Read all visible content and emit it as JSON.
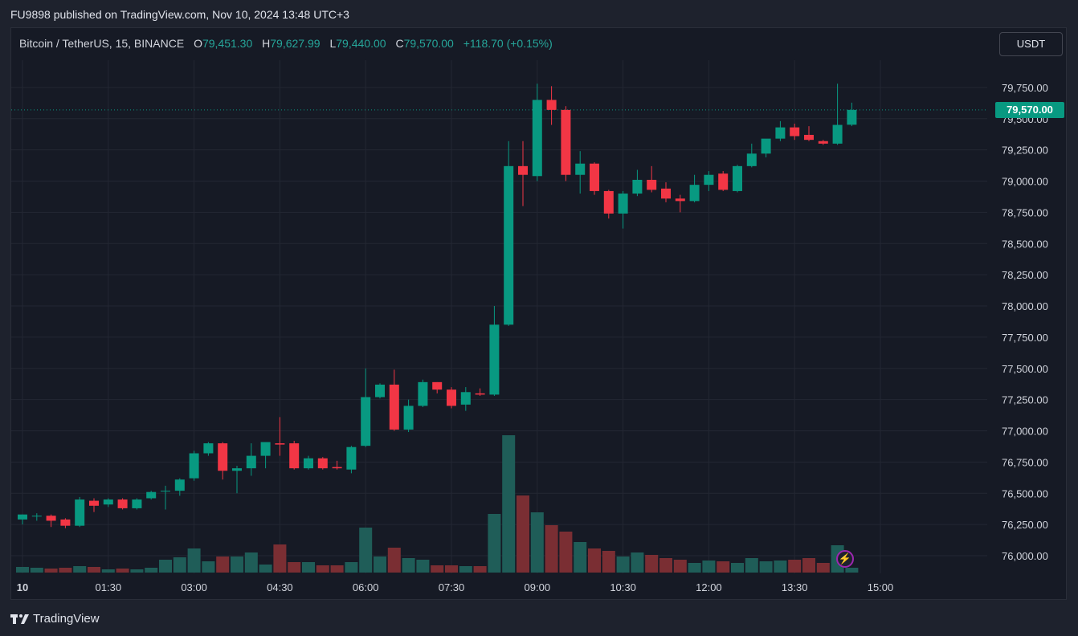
{
  "header": {
    "published": "FU9898 published on TradingView.com, Nov 10, 2024 13:48 UTC+3"
  },
  "symbol": {
    "name": "Bitcoin / TetherUS, 15, BINANCE",
    "o_label": "O",
    "o_value": "79,451.30",
    "h_label": "H",
    "h_value": "79,627.99",
    "l_label": "L",
    "l_value": "79,440.00",
    "c_label": "C",
    "c_value": "79,570.00",
    "change": "+118.70 (+0.15%)"
  },
  "currency_button": "USDT",
  "last_price_label": "79,570.00",
  "footer": {
    "brand": "TradingView",
    "logo_icon": "tradingview-logo-icon"
  },
  "colors": {
    "up": "#089981",
    "down": "#f23645",
    "up_volume": "#1f5d58",
    "down_volume": "#7a2e33",
    "background": "#161a25",
    "grid": "#232733",
    "text": "#d1d4dc"
  },
  "chart_data": {
    "type": "candlestick",
    "interval": "15",
    "grid": true,
    "price_axis": {
      "position": "right",
      "ticks": [
        76000,
        76250,
        76500,
        76750,
        77000,
        77250,
        77500,
        77750,
        78000,
        78250,
        78500,
        78750,
        79000,
        79250,
        79500,
        79750
      ],
      "tick_labels": [
        "76,000.00",
        "76,250.00",
        "76,500.00",
        "76,750.00",
        "77,000.00",
        "77,250.00",
        "77,500.00",
        "77,750.00",
        "78,000.00",
        "78,250.00",
        "78,500.00",
        "78,750.00",
        "79,000.00",
        "79,250.00",
        "79,500.00",
        "79,750.00"
      ]
    },
    "time_axis": {
      "labels": [
        "10",
        "01:30",
        "03:00",
        "04:30",
        "06:00",
        "07:30",
        "09:00",
        "10:30",
        "12:00",
        "13:30",
        "15:00"
      ],
      "label_bar_index": [
        0,
        6,
        12,
        18,
        24,
        30,
        36,
        42,
        48,
        54,
        60
      ]
    },
    "last_price": 79570,
    "candles": [
      {
        "o": 76290,
        "h": 76330,
        "l": 76250,
        "c": 76330,
        "v": 7
      },
      {
        "o": 76320,
        "h": 76340,
        "l": 76280,
        "c": 76320,
        "v": 6
      },
      {
        "o": 76320,
        "h": 76330,
        "l": 76230,
        "c": 76280,
        "v": 5
      },
      {
        "o": 76290,
        "h": 76300,
        "l": 76220,
        "c": 76240,
        "v": 6
      },
      {
        "o": 76240,
        "h": 76470,
        "l": 76230,
        "c": 76450,
        "v": 8
      },
      {
        "o": 76440,
        "h": 76460,
        "l": 76350,
        "c": 76400,
        "v": 7
      },
      {
        "o": 76410,
        "h": 76460,
        "l": 76390,
        "c": 76450,
        "v": 4
      },
      {
        "o": 76450,
        "h": 76460,
        "l": 76370,
        "c": 76380,
        "v": 5
      },
      {
        "o": 76380,
        "h": 76460,
        "l": 76370,
        "c": 76450,
        "v": 4
      },
      {
        "o": 76460,
        "h": 76520,
        "l": 76450,
        "c": 76510,
        "v": 6
      },
      {
        "o": 76520,
        "h": 76560,
        "l": 76370,
        "c": 76520,
        "v": 16
      },
      {
        "o": 76520,
        "h": 76620,
        "l": 76480,
        "c": 76610,
        "v": 19
      },
      {
        "o": 76620,
        "h": 76840,
        "l": 76600,
        "c": 76820,
        "v": 30
      },
      {
        "o": 76820,
        "h": 76910,
        "l": 76800,
        "c": 76900,
        "v": 14
      },
      {
        "o": 76900,
        "h": 76910,
        "l": 76610,
        "c": 76680,
        "v": 20
      },
      {
        "o": 76680,
        "h": 76720,
        "l": 76500,
        "c": 76700,
        "v": 20
      },
      {
        "o": 76700,
        "h": 76900,
        "l": 76640,
        "c": 76800,
        "v": 25
      },
      {
        "o": 76800,
        "h": 76900,
        "l": 76700,
        "c": 76910,
        "v": 10
      },
      {
        "o": 76900,
        "h": 77110,
        "l": 76800,
        "c": 76890,
        "v": 35
      },
      {
        "o": 76900,
        "h": 76920,
        "l": 76690,
        "c": 76700,
        "v": 13
      },
      {
        "o": 76700,
        "h": 76800,
        "l": 76690,
        "c": 76780,
        "v": 13
      },
      {
        "o": 76780,
        "h": 76790,
        "l": 76690,
        "c": 76700,
        "v": 9
      },
      {
        "o": 76710,
        "h": 76760,
        "l": 76690,
        "c": 76700,
        "v": 9
      },
      {
        "o": 76690,
        "h": 76880,
        "l": 76660,
        "c": 76870,
        "v": 13
      },
      {
        "o": 76880,
        "h": 77500,
        "l": 76870,
        "c": 77270,
        "v": 56
      },
      {
        "o": 77270,
        "h": 77380,
        "l": 77260,
        "c": 77370,
        "v": 20
      },
      {
        "o": 77370,
        "h": 77490,
        "l": 77000,
        "c": 77010,
        "v": 31
      },
      {
        "o": 77010,
        "h": 77250,
        "l": 76990,
        "c": 77200,
        "v": 18
      },
      {
        "o": 77200,
        "h": 77410,
        "l": 77190,
        "c": 77390,
        "v": 16
      },
      {
        "o": 77390,
        "h": 77390,
        "l": 77300,
        "c": 77330,
        "v": 9
      },
      {
        "o": 77330,
        "h": 77350,
        "l": 77180,
        "c": 77200,
        "v": 9
      },
      {
        "o": 77210,
        "h": 77350,
        "l": 77160,
        "c": 77310,
        "v": 8
      },
      {
        "o": 77300,
        "h": 77340,
        "l": 77280,
        "c": 77290,
        "v": 8
      },
      {
        "o": 77290,
        "h": 78000,
        "l": 77280,
        "c": 77850,
        "v": 73
      },
      {
        "o": 77850,
        "h": 79320,
        "l": 77840,
        "c": 79120,
        "v": 171
      },
      {
        "o": 79120,
        "h": 79320,
        "l": 78800,
        "c": 79050,
        "v": 96
      },
      {
        "o": 79040,
        "h": 79780,
        "l": 79000,
        "c": 79650,
        "v": 75
      },
      {
        "o": 79650,
        "h": 79760,
        "l": 79450,
        "c": 79570,
        "v": 59
      },
      {
        "o": 79570,
        "h": 79600,
        "l": 79000,
        "c": 79050,
        "v": 51
      },
      {
        "o": 79050,
        "h": 79240,
        "l": 78900,
        "c": 79140,
        "v": 38
      },
      {
        "o": 79140,
        "h": 79150,
        "l": 78890,
        "c": 78920,
        "v": 30
      },
      {
        "o": 78920,
        "h": 78930,
        "l": 78700,
        "c": 78740,
        "v": 27
      },
      {
        "o": 78740,
        "h": 78920,
        "l": 78620,
        "c": 78900,
        "v": 20
      },
      {
        "o": 78900,
        "h": 79090,
        "l": 78880,
        "c": 79010,
        "v": 25
      },
      {
        "o": 79010,
        "h": 79120,
        "l": 78910,
        "c": 78930,
        "v": 22
      },
      {
        "o": 78940,
        "h": 78990,
        "l": 78830,
        "c": 78860,
        "v": 18
      },
      {
        "o": 78860,
        "h": 78890,
        "l": 78750,
        "c": 78840,
        "v": 16
      },
      {
        "o": 78840,
        "h": 79050,
        "l": 78830,
        "c": 78970,
        "v": 12
      },
      {
        "o": 78970,
        "h": 79080,
        "l": 78920,
        "c": 79050,
        "v": 15
      },
      {
        "o": 79060,
        "h": 79080,
        "l": 78920,
        "c": 78930,
        "v": 14
      },
      {
        "o": 78920,
        "h": 79130,
        "l": 78910,
        "c": 79120,
        "v": 12
      },
      {
        "o": 79120,
        "h": 79300,
        "l": 79110,
        "c": 79220,
        "v": 18
      },
      {
        "o": 79220,
        "h": 79330,
        "l": 79190,
        "c": 79340,
        "v": 14
      },
      {
        "o": 79340,
        "h": 79480,
        "l": 79320,
        "c": 79430,
        "v": 15
      },
      {
        "o": 79430,
        "h": 79460,
        "l": 79330,
        "c": 79360,
        "v": 16
      },
      {
        "o": 79370,
        "h": 79440,
        "l": 79320,
        "c": 79330,
        "v": 18
      },
      {
        "o": 79320,
        "h": 79330,
        "l": 79290,
        "c": 79300,
        "v": 12
      },
      {
        "o": 79300,
        "h": 79780,
        "l": 79290,
        "c": 79450,
        "v": 34
      },
      {
        "o": 79451.3,
        "h": 79627.99,
        "l": 79440,
        "c": 79570,
        "v": 6
      }
    ]
  }
}
